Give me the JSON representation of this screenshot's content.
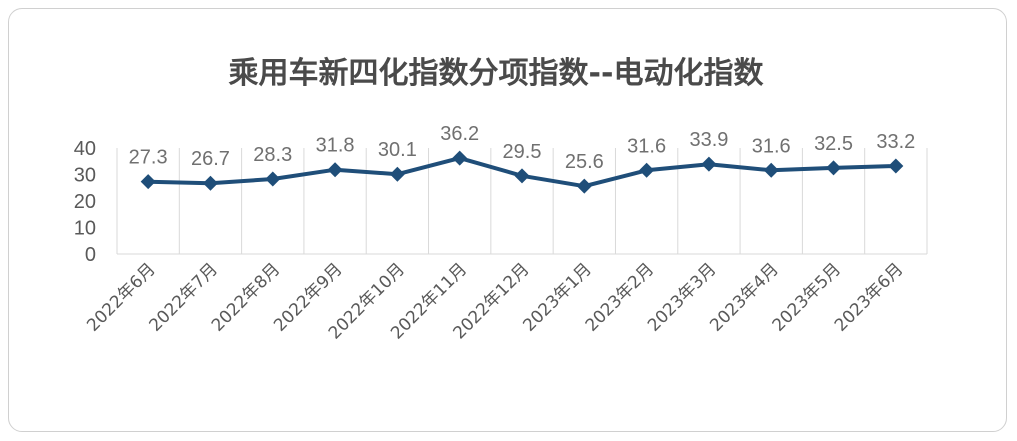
{
  "chart_data": {
    "type": "line",
    "title": "乘用车新四化指数分项指数--电动化指数",
    "xlabel": "",
    "ylabel": "",
    "categories": [
      "2022年6月",
      "2022年7月",
      "2022年8月",
      "2022年9月",
      "2022年10月",
      "2022年11月",
      "2022年12月",
      "2023年1月",
      "2023年2月",
      "2023年3月",
      "2023年4月",
      "2023年5月",
      "2023年6月"
    ],
    "series": [
      {
        "values": [
          27.3,
          26.7,
          28.3,
          31.8,
          30.1,
          36.2,
          29.5,
          25.6,
          31.6,
          33.9,
          31.6,
          32.5,
          33.2
        ]
      }
    ],
    "value_labels": [
      "27.3",
      "26.7",
      "28.3",
      "31.8",
      "30.1",
      "36.2",
      "29.5",
      "25.6",
      "31.6",
      "33.9",
      "31.6",
      "32.5",
      "33.2"
    ],
    "ylim": [
      0,
      40
    ],
    "yticks": [
      "0",
      "10",
      "20",
      "30",
      "40"
    ],
    "grid": "vertical",
    "legend": "none",
    "line_color": "#1f4e79",
    "marker": "diamond"
  }
}
